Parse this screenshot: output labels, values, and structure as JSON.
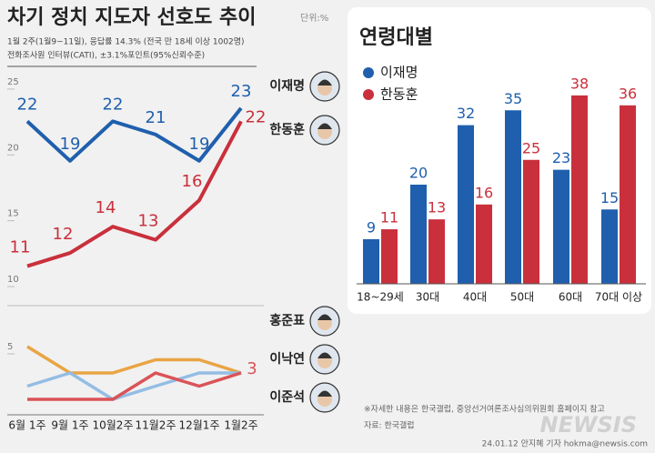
{
  "title": "차기 정치 지도자 선호도 추이",
  "unit": "단위:%",
  "subtitle": [
    "1월 2주(1월9~11일), 응답률 14.3% (전국 만 18세 이상 1002명)",
    "전화조사원 인터뷰(CATI), ±3.1%포인트(95%신뢰수준)"
  ],
  "chart_data": [
    {
      "type": "line",
      "categories": [
        "6월 1주",
        "9월 1주",
        "10월2주",
        "11월2주",
        "12월1주",
        "1월2주"
      ],
      "ylim": [
        9,
        26
      ],
      "yticks": [
        10,
        15,
        20,
        25
      ],
      "series": [
        {
          "name": "이재명",
          "color": "#1f5fad",
          "values": [
            22,
            19,
            22,
            21,
            19,
            23
          ]
        },
        {
          "name": "한동훈",
          "color": "#c9303c",
          "values": [
            11,
            12,
            14,
            13,
            16,
            22
          ]
        }
      ]
    },
    {
      "type": "line",
      "ylim": [
        0,
        6
      ],
      "yticks": [
        5
      ],
      "series": [
        {
          "name": "홍준표",
          "color": "#e9a443",
          "values": [
            5,
            3,
            3,
            4,
            4,
            3
          ]
        },
        {
          "name": "이낙연",
          "color": "#93bde4",
          "values": [
            2,
            3,
            1,
            2,
            3,
            3
          ]
        },
        {
          "name": "이준석",
          "color": "#da5358",
          "values": [
            1,
            1,
            1,
            3,
            2,
            3
          ]
        }
      ]
    },
    {
      "type": "bar",
      "title": "연령대별",
      "categories": [
        "18~29세",
        "30대",
        "40대",
        "50대",
        "60대",
        "70대 이상"
      ],
      "ylim": [
        0,
        40
      ],
      "series": [
        {
          "name": "이재명",
          "color": "#1f5fad",
          "values": [
            9,
            20,
            32,
            35,
            23,
            15
          ]
        },
        {
          "name": "한동훈",
          "color": "#c9303c",
          "values": [
            11,
            13,
            16,
            25,
            38,
            36
          ]
        }
      ]
    }
  ],
  "footnote": "※자세한 내용은 한국갤럽, 중앙선거여론조사심의위원회 홈페이지 참고",
  "source": "자료: 한국갤럽",
  "credit": "24.01.12 안지혜 기자 hokma@newsis.com",
  "watermark": "NEWSIS"
}
